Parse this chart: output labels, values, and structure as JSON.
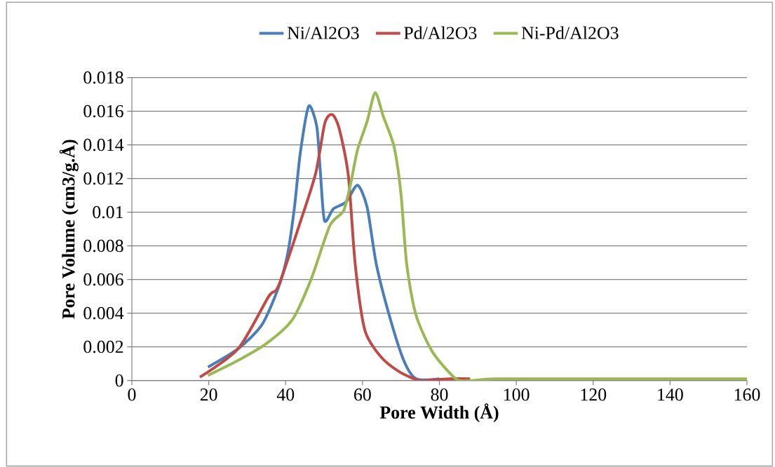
{
  "chart_data": {
    "type": "line",
    "xlabel": "Pore Width (Å)",
    "ylabel": "Pore Volume (cm3/g.Å)",
    "xlim": [
      0,
      160
    ],
    "xticks": [
      0,
      20,
      40,
      60,
      80,
      100,
      120,
      140,
      160
    ],
    "ylim": [
      0,
      0.018
    ],
    "yticks": [
      0,
      0.002,
      0.004,
      0.006,
      0.008,
      0.01,
      0.012,
      0.014,
      0.016,
      0.018
    ],
    "grid": "y",
    "legend": "top",
    "marker": "none",
    "line_style": "solid",
    "series": [
      {
        "name": "Ni/Al2O3",
        "color": "#4a7ebb",
        "x": [
          19.8,
          27.7,
          33.8,
          38.1,
          40.5,
          42.3,
          43.8,
          46.0,
          48.1,
          49.0,
          50.1,
          52.4,
          55.7,
          58.7,
          61.2,
          63.6,
          67.3,
          70.9,
          74.0,
          80
        ],
        "values": [
          0.0008,
          0.0019,
          0.0033,
          0.0055,
          0.0075,
          0.0103,
          0.0135,
          0.0163,
          0.0151,
          0.0125,
          0.0095,
          0.0102,
          0.0106,
          0.0116,
          0.0103,
          0.0069,
          0.0036,
          0.0011,
          0.0001,
          0.0001
        ]
      },
      {
        "name": "Pd/Al2O3",
        "color": "#be4b48",
        "x": [
          17.7,
          27.7,
          35.6,
          38.1,
          43.5,
          47.8,
          50.2,
          52.1,
          53.9,
          56.3,
          58.1,
          60.6,
          64.8,
          69.7,
          74.6,
          76.4,
          82.5,
          88
        ],
        "values": [
          0.0002,
          0.0019,
          0.005,
          0.0056,
          0.0092,
          0.0123,
          0.0153,
          0.0158,
          0.015,
          0.0122,
          0.0069,
          0.003,
          0.0014,
          0.0005,
          0.0,
          0.0,
          0.0001,
          0.0001
        ]
      },
      {
        "name": "Ni-Pd/Al2O3",
        "color": "#98b954",
        "x": [
          19.8,
          27.7,
          35.0,
          41.7,
          46.6,
          51.5,
          55.1,
          57.0,
          58.7,
          61.2,
          63.3,
          65.4,
          68.2,
          70.0,
          71.5,
          73.9,
          78.2,
          84.3,
          88.5,
          94.6,
          120,
          160
        ],
        "values": [
          0.0003,
          0.0012,
          0.0022,
          0.0036,
          0.006,
          0.0092,
          0.0101,
          0.0118,
          0.0137,
          0.0154,
          0.0171,
          0.0157,
          0.0139,
          0.0111,
          0.0069,
          0.0039,
          0.0017,
          0.0001,
          0.0,
          0.0001,
          0.0001,
          0.0001
        ]
      }
    ]
  }
}
